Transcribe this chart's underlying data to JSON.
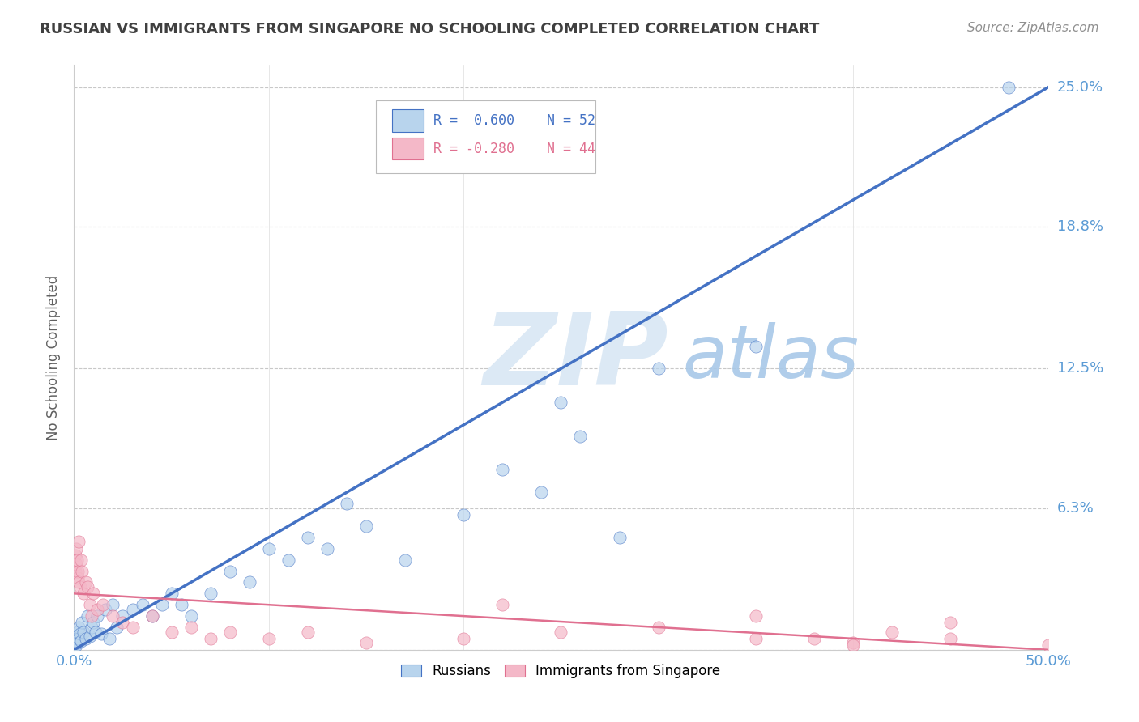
{
  "title": "RUSSIAN VS IMMIGRANTS FROM SINGAPORE NO SCHOOLING COMPLETED CORRELATION CHART",
  "source": "Source: ZipAtlas.com",
  "ylabel": "No Schooling Completed",
  "xlim": [
    0.0,
    50.0
  ],
  "ylim": [
    0.0,
    26.0
  ],
  "ytick_positions": [
    0.0,
    6.3,
    12.5,
    18.8,
    25.0
  ],
  "ytick_labels": [
    "",
    "6.3%",
    "12.5%",
    "18.8%",
    "25.0%"
  ],
  "grid_color": "#c8c8c8",
  "background_color": "#ffffff",
  "title_color": "#404040",
  "source_color": "#909090",
  "axis_label_color": "#5b9bd5",
  "watermark_ZIP": "ZIP",
  "watermark_atlas": "atlas",
  "watermark_color_ZIP": "#dce9f5",
  "watermark_color_atlas": "#a8c8e8",
  "legend_r1": "R =  0.600",
  "legend_n1": "N = 52",
  "legend_r2": "R = -0.280",
  "legend_n2": "N = 44",
  "color_russian": "#b8d4ed",
  "color_singapore": "#f4b8c8",
  "color_russian_line": "#4472c4",
  "color_singapore_line": "#e07090",
  "rus_line_x0": 0.0,
  "rus_line_y0": 0.0,
  "rus_line_x1": 50.0,
  "rus_line_y1": 25.0,
  "sing_line_x0": 0.0,
  "sing_line_y0": 2.5,
  "sing_line_x1": 50.0,
  "sing_line_y1": -0.5,
  "russian_x": [
    0.05,
    0.08,
    0.1,
    0.12,
    0.15,
    0.18,
    0.2,
    0.22,
    0.25,
    0.3,
    0.35,
    0.4,
    0.5,
    0.6,
    0.7,
    0.8,
    0.9,
    1.0,
    1.1,
    1.2,
    1.4,
    1.6,
    1.8,
    2.0,
    2.2,
    2.5,
    3.0,
    3.5,
    4.0,
    4.5,
    5.0,
    5.5,
    6.0,
    7.0,
    8.0,
    9.0,
    10.0,
    11.0,
    12.0,
    13.0,
    14.0,
    15.0,
    17.0,
    20.0,
    22.0,
    24.0,
    25.0,
    26.0,
    28.0,
    30.0,
    35.0,
    48.0
  ],
  "russian_y": [
    0.3,
    0.5,
    0.2,
    0.4,
    0.6,
    0.3,
    0.8,
    0.5,
    1.0,
    0.7,
    0.4,
    1.2,
    0.8,
    0.5,
    1.5,
    0.6,
    1.0,
    1.2,
    0.8,
    1.5,
    0.7,
    1.8,
    0.5,
    2.0,
    1.0,
    1.5,
    1.8,
    2.0,
    1.5,
    2.0,
    2.5,
    2.0,
    1.5,
    2.5,
    3.5,
    3.0,
    4.5,
    4.0,
    5.0,
    4.5,
    6.5,
    5.5,
    4.0,
    6.0,
    8.0,
    7.0,
    11.0,
    9.5,
    5.0,
    12.5,
    13.5,
    25.0
  ],
  "singapore_x": [
    0.05,
    0.08,
    0.1,
    0.12,
    0.15,
    0.18,
    0.2,
    0.22,
    0.25,
    0.3,
    0.35,
    0.4,
    0.5,
    0.6,
    0.7,
    0.8,
    0.9,
    1.0,
    1.2,
    1.5,
    2.0,
    2.5,
    3.0,
    4.0,
    5.0,
    6.0,
    7.0,
    8.0,
    10.0,
    12.0,
    15.0,
    20.0,
    25.0,
    30.0,
    35.0,
    40.0,
    45.0,
    50.0,
    22.0,
    35.0,
    38.0,
    40.0,
    42.0,
    45.0
  ],
  "singapore_y": [
    3.5,
    4.2,
    3.8,
    4.5,
    4.0,
    3.2,
    3.5,
    4.8,
    3.0,
    2.8,
    4.0,
    3.5,
    2.5,
    3.0,
    2.8,
    2.0,
    1.5,
    2.5,
    1.8,
    2.0,
    1.5,
    1.2,
    1.0,
    1.5,
    0.8,
    1.0,
    0.5,
    0.8,
    0.5,
    0.8,
    0.3,
    0.5,
    0.8,
    1.0,
    0.5,
    0.3,
    0.5,
    0.2,
    2.0,
    1.5,
    0.5,
    0.2,
    0.8,
    1.2
  ]
}
